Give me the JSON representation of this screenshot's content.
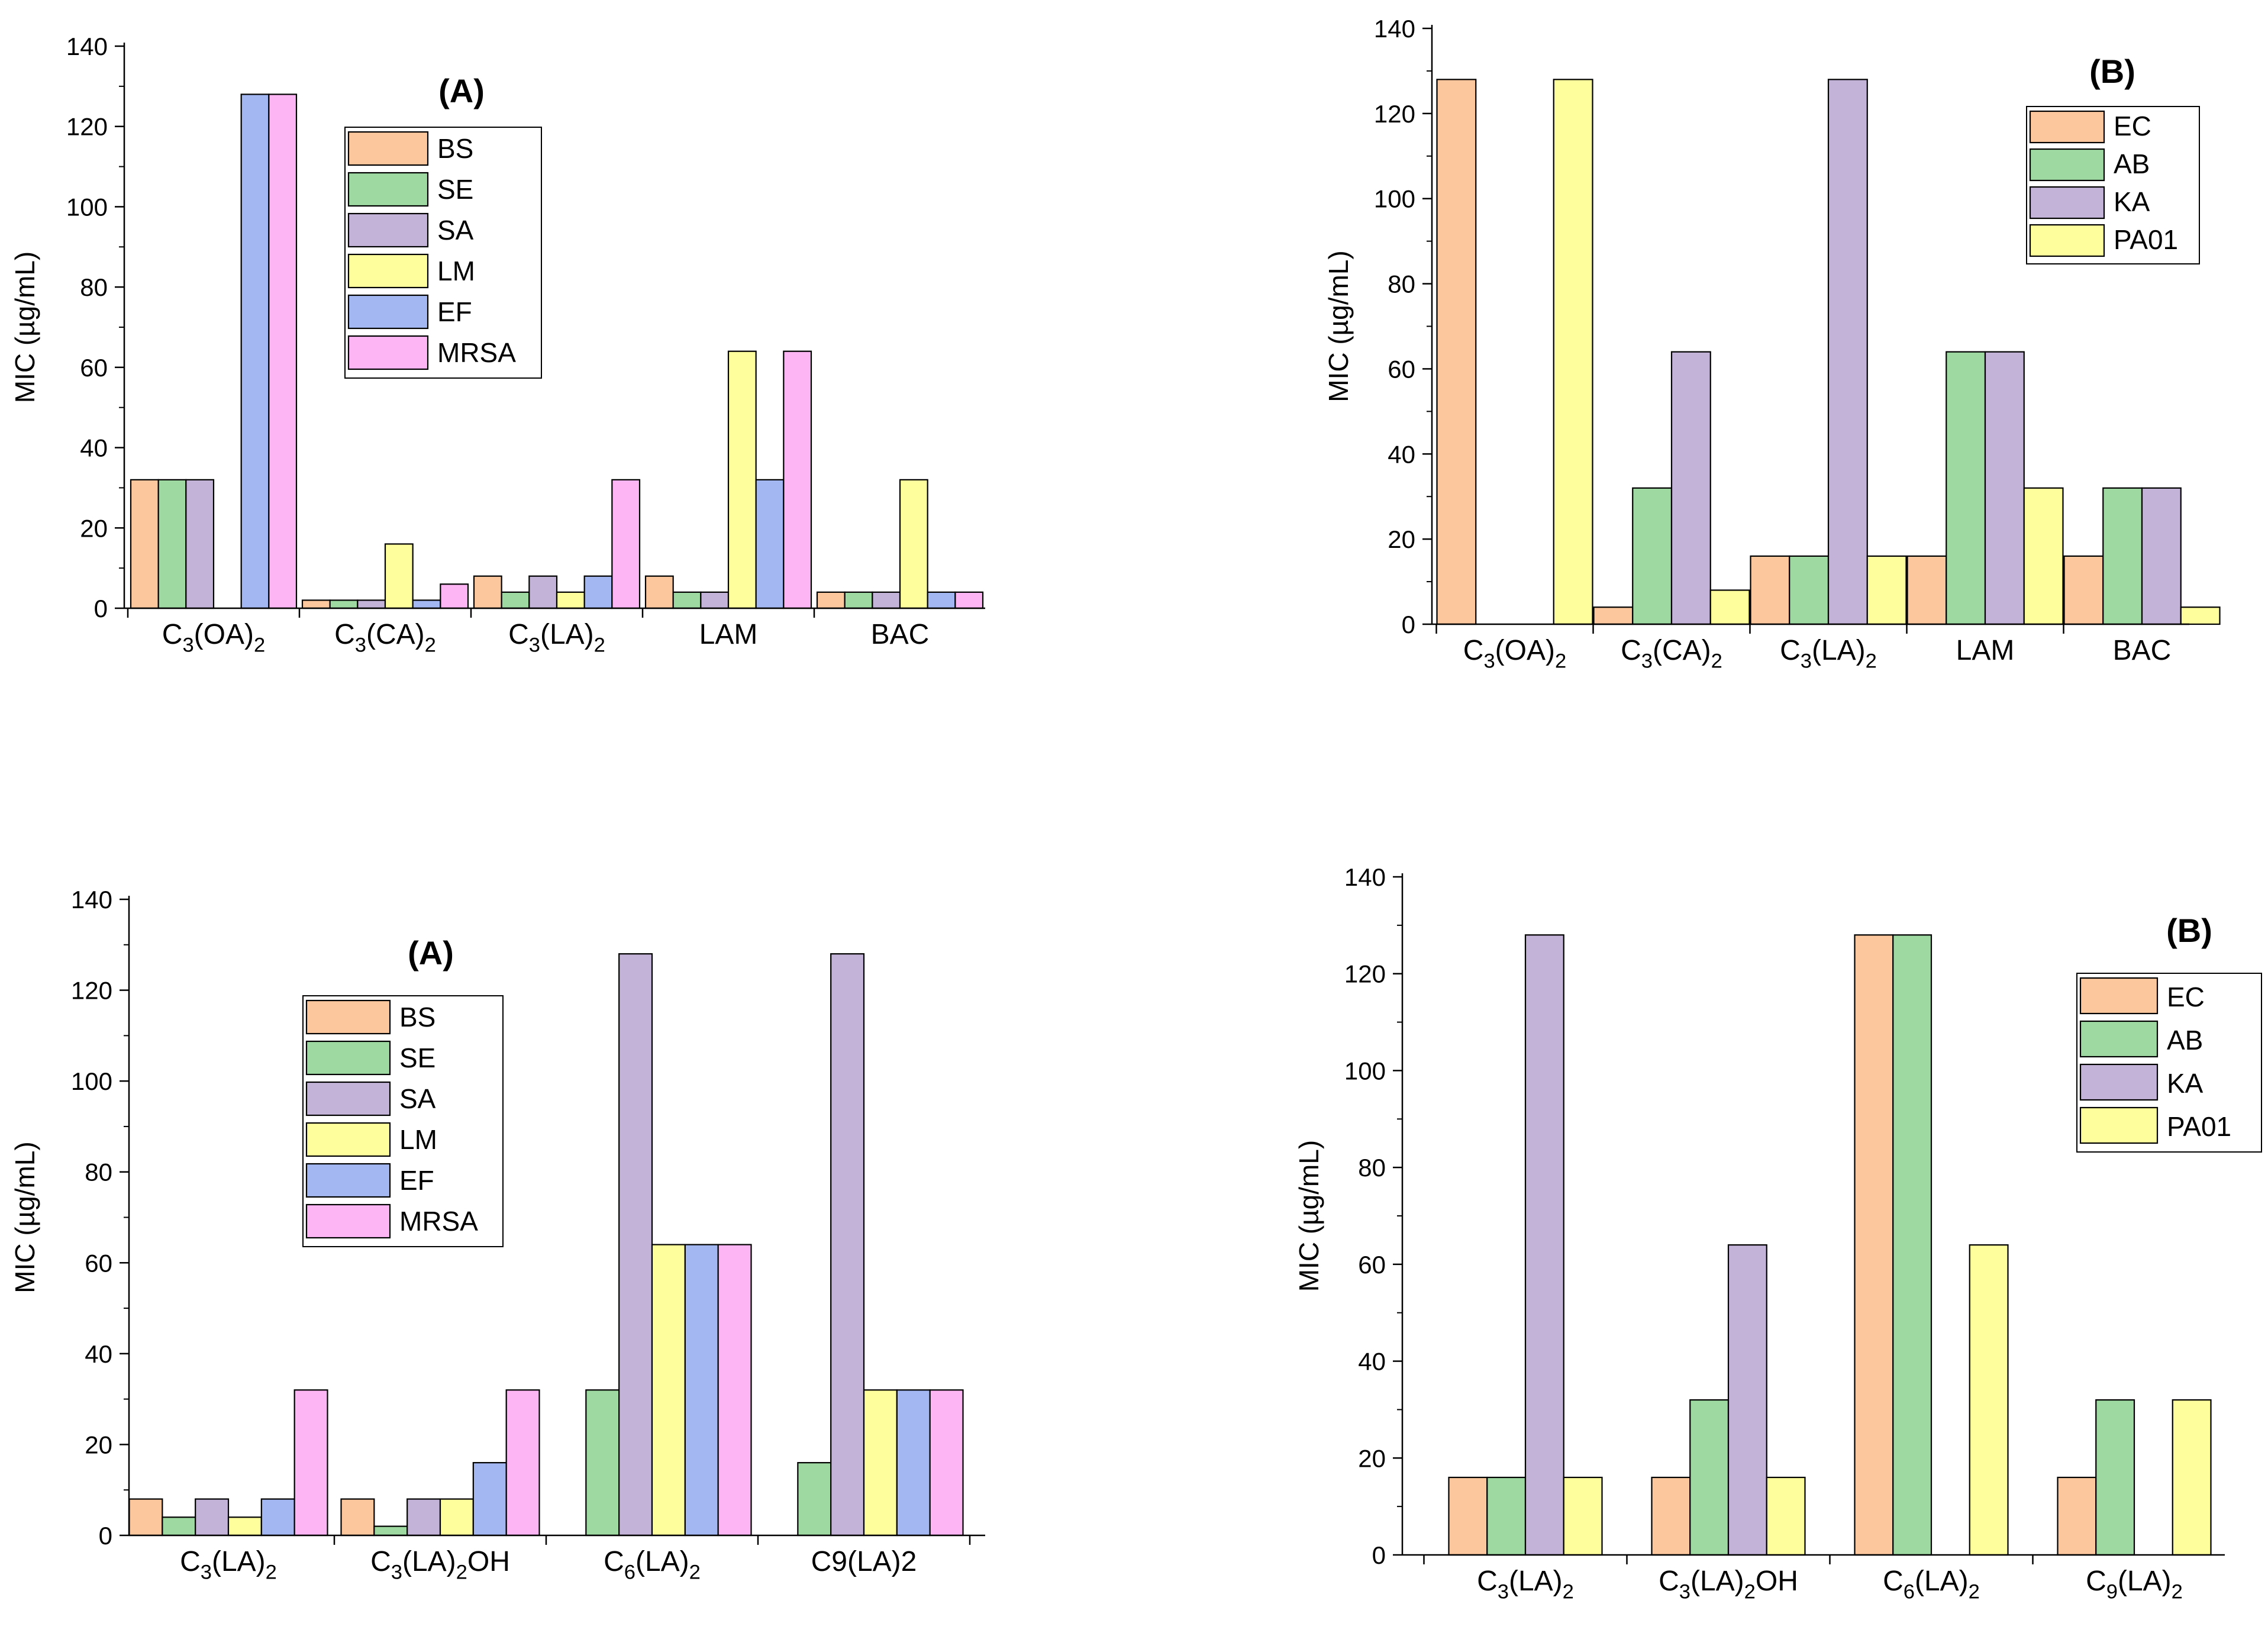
{
  "colors": {
    "BS": "#fcc79c",
    "SE": "#9dd9a0",
    "SA": "#c4b3d9",
    "LM": "#fefe9c",
    "EF": "#a3b8f3",
    "MRSA": "#fdb5f4",
    "EC": "#fcc79c",
    "AB": "#9dd9a0",
    "KA": "#c4b3d9",
    "PA01": "#fefe9c"
  },
  "chart_data": [
    {
      "id": "A1",
      "type": "bar",
      "panel_label": "(A)",
      "ylabel": "MIC (µg/mL)",
      "ylim": [
        0,
        140
      ],
      "yticks": [
        0,
        20,
        40,
        60,
        80,
        100,
        120,
        140
      ],
      "legend_position": "top-center",
      "categories": [
        {
          "base": "C",
          "parts": [
            [
              "3",
              "sub"
            ],
            [
              "(OA)",
              ""
            ],
            [
              "2",
              "sub"
            ]
          ]
        },
        {
          "base": "C",
          "parts": [
            [
              "3",
              "sub"
            ],
            [
              "(CA)",
              ""
            ],
            [
              "2",
              "sub"
            ]
          ]
        },
        {
          "base": "C",
          "parts": [
            [
              "3",
              "sub"
            ],
            [
              "(LA)",
              ""
            ],
            [
              "2",
              "sub"
            ]
          ]
        },
        {
          "base": "LAM",
          "parts": []
        },
        {
          "base": "BAC",
          "parts": []
        }
      ],
      "series": [
        {
          "name": "BS",
          "values": [
            32,
            2,
            8,
            8,
            4
          ]
        },
        {
          "name": "SE",
          "values": [
            32,
            2,
            4,
            4,
            4
          ]
        },
        {
          "name": "SA",
          "values": [
            32,
            2,
            8,
            4,
            4
          ]
        },
        {
          "name": "LM",
          "values": [
            0,
            16,
            4,
            64,
            32
          ]
        },
        {
          "name": "EF",
          "values": [
            128,
            2,
            8,
            32,
            4
          ]
        },
        {
          "name": "MRSA",
          "values": [
            128,
            6,
            32,
            64,
            4
          ]
        }
      ]
    },
    {
      "id": "B1",
      "type": "bar",
      "panel_label": "(B)",
      "ylabel": "MIC (µg/mL)",
      "ylim": [
        0,
        140
      ],
      "yticks": [
        0,
        20,
        40,
        60,
        80,
        100,
        120,
        140
      ],
      "legend_position": "top-right",
      "categories": [
        {
          "base": "C",
          "parts": [
            [
              "3",
              "sub"
            ],
            [
              "(OA)",
              ""
            ],
            [
              "2",
              "sub"
            ]
          ]
        },
        {
          "base": "C",
          "parts": [
            [
              "3",
              "sub"
            ],
            [
              "(CA)",
              ""
            ],
            [
              "2",
              "sub"
            ]
          ]
        },
        {
          "base": "C",
          "parts": [
            [
              "3",
              "sub"
            ],
            [
              "(LA)",
              ""
            ],
            [
              "2",
              "sub"
            ]
          ]
        },
        {
          "base": "LAM",
          "parts": []
        },
        {
          "base": "BAC",
          "parts": []
        }
      ],
      "series": [
        {
          "name": "EC",
          "values": [
            128,
            4,
            16,
            16,
            16
          ]
        },
        {
          "name": "AB",
          "values": [
            0,
            32,
            16,
            64,
            32
          ]
        },
        {
          "name": "KA",
          "values": [
            0,
            64,
            128,
            64,
            32
          ]
        },
        {
          "name": "PA01",
          "values": [
            128,
            8,
            16,
            32,
            4
          ]
        }
      ]
    },
    {
      "id": "A2",
      "type": "bar",
      "panel_label": "(A)",
      "ylabel": "MIC (µg/mL)",
      "ylim": [
        0,
        140
      ],
      "yticks": [
        0,
        20,
        40,
        60,
        80,
        100,
        120,
        140
      ],
      "legend_position": "top-center",
      "categories": [
        {
          "base": "C",
          "parts": [
            [
              "3",
              "sub"
            ],
            [
              "(LA)",
              ""
            ],
            [
              "2",
              "sub"
            ]
          ]
        },
        {
          "base": "C",
          "parts": [
            [
              "3",
              "sub"
            ],
            [
              "(LA)",
              ""
            ],
            [
              "2",
              "sub"
            ],
            [
              "OH",
              ""
            ]
          ]
        },
        {
          "base": "C",
          "parts": [
            [
              "6",
              "sub"
            ],
            [
              "(LA)",
              ""
            ],
            [
              "2",
              "sub"
            ]
          ]
        },
        {
          "base": "C9(LA)2",
          "parts": []
        }
      ],
      "series": [
        {
          "name": "BS",
          "values": [
            8,
            8,
            0,
            0
          ]
        },
        {
          "name": "SE",
          "values": [
            4,
            2,
            32,
            16
          ]
        },
        {
          "name": "SA",
          "values": [
            8,
            8,
            128,
            128
          ]
        },
        {
          "name": "LM",
          "values": [
            4,
            8,
            64,
            32
          ]
        },
        {
          "name": "EF",
          "values": [
            8,
            16,
            64,
            32
          ]
        },
        {
          "name": "MRSA",
          "values": [
            32,
            32,
            64,
            32
          ]
        }
      ]
    },
    {
      "id": "B2",
      "type": "bar",
      "panel_label": "(B)",
      "ylabel": "MIC (µg/mL)",
      "ylim": [
        0,
        140
      ],
      "yticks": [
        0,
        20,
        40,
        60,
        80,
        100,
        120,
        140
      ],
      "legend_position": "top-right",
      "categories": [
        {
          "base": "C",
          "parts": [
            [
              "3",
              "sub"
            ],
            [
              "(LA)",
              ""
            ],
            [
              "2",
              "sub"
            ]
          ]
        },
        {
          "base": "C",
          "parts": [
            [
              "3",
              "sub"
            ],
            [
              "(LA)",
              ""
            ],
            [
              "2",
              "sub"
            ],
            [
              "OH",
              ""
            ]
          ]
        },
        {
          "base": "C",
          "parts": [
            [
              "6",
              "sub"
            ],
            [
              "(LA)",
              ""
            ],
            [
              "2",
              "sub"
            ]
          ]
        },
        {
          "base": "C",
          "parts": [
            [
              "9",
              "sub"
            ],
            [
              "(LA)",
              ""
            ],
            [
              "2",
              "sub"
            ]
          ]
        }
      ],
      "series": [
        {
          "name": "EC",
          "values": [
            16,
            16,
            128,
            16
          ]
        },
        {
          "name": "AB",
          "values": [
            16,
            32,
            128,
            32
          ]
        },
        {
          "name": "KA",
          "values": [
            128,
            64,
            0,
            0
          ]
        },
        {
          "name": "PA01",
          "values": [
            16,
            16,
            64,
            32
          ]
        }
      ]
    }
  ]
}
